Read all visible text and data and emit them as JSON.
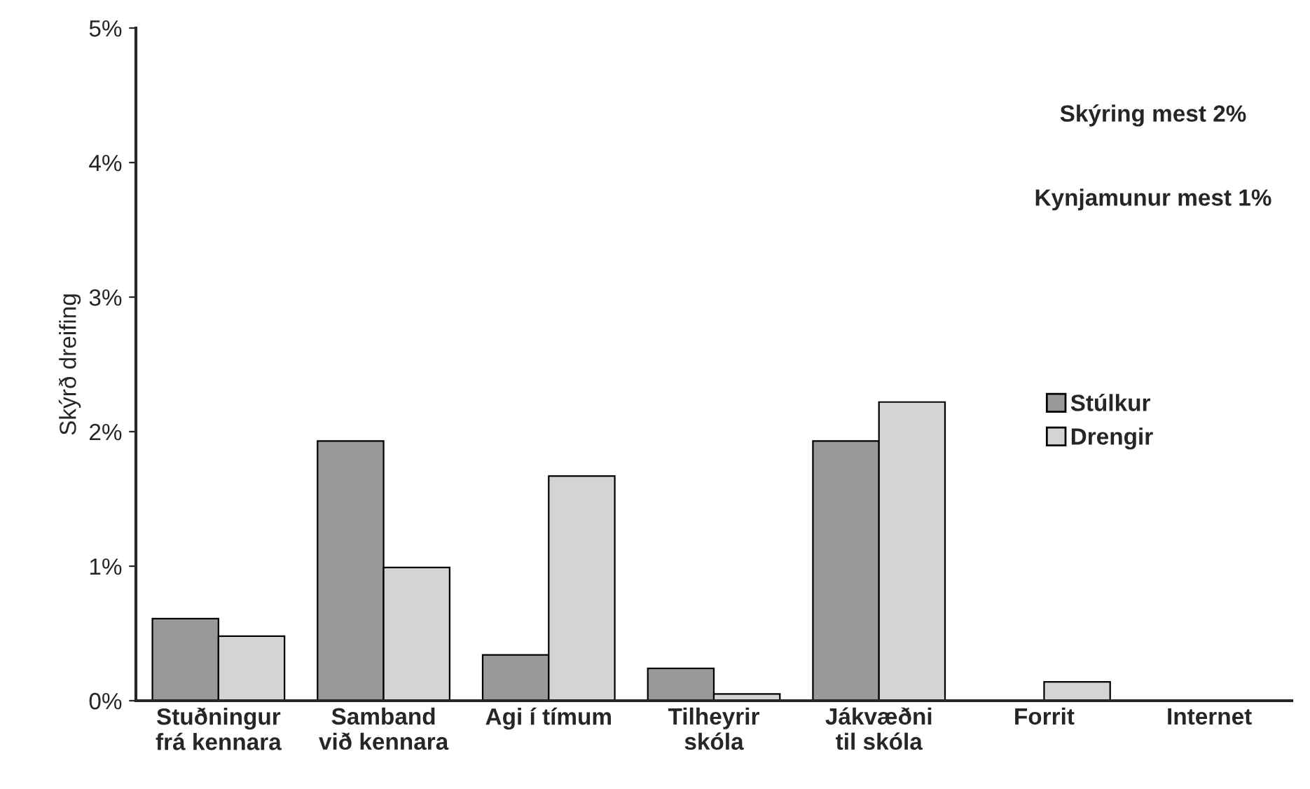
{
  "chart_data": {
    "type": "bar",
    "ylabel": "Skýrð dreifing",
    "categories": [
      "Stuðningur\nfrá kennara",
      "Samband\nvið kennara",
      "Agi í tímum",
      "Tilheyrir\nskóla",
      "Jákvæðni\ntil skóla",
      "Forrit",
      "Internet"
    ],
    "series": [
      {
        "name": "Stúlkur",
        "color": "#999999",
        "values": [
          0.61,
          1.93,
          0.34,
          0.24,
          1.93,
          0,
          0
        ]
      },
      {
        "name": "Drengir",
        "color": "#d4d4d4",
        "values": [
          0.48,
          0.99,
          1.67,
          0.05,
          2.22,
          0.14,
          0
        ]
      }
    ],
    "ylim": [
      0,
      5
    ],
    "yticks": [
      {
        "value": 0,
        "label": "0%"
      },
      {
        "value": 1,
        "label": "1%"
      },
      {
        "value": 2,
        "label": "2%"
      },
      {
        "value": 3,
        "label": "3%"
      },
      {
        "value": 4,
        "label": "4%"
      },
      {
        "value": 5,
        "label": "5%"
      }
    ],
    "annotations": [
      "Skýring mest 2%",
      "Kynjamunur mest 1%"
    ],
    "legend": "right",
    "grid": false
  }
}
